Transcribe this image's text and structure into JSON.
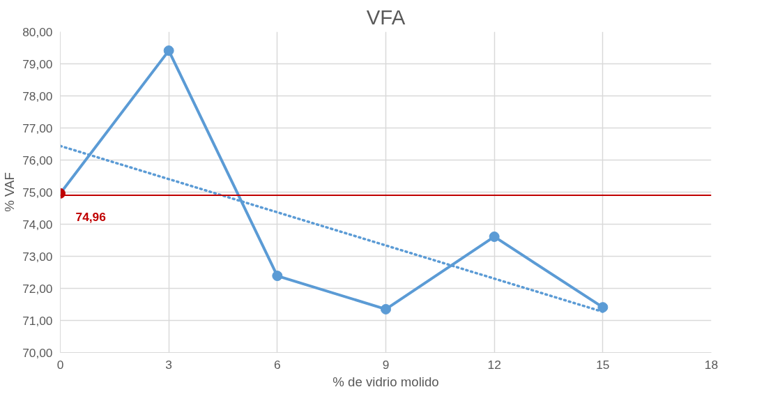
{
  "chart_data": {
    "type": "line",
    "title": "VFA",
    "xlabel": "% de vidrio molido",
    "ylabel": "% VAF",
    "xlim": [
      0,
      18
    ],
    "xticks": [
      0,
      3,
      6,
      9,
      12,
      15,
      18
    ],
    "ylim": [
      70,
      80
    ],
    "yticks": [
      {
        "value": 70,
        "label": "70,00"
      },
      {
        "value": 71,
        "label": "71,00"
      },
      {
        "value": 72,
        "label": "72,00"
      },
      {
        "value": 73,
        "label": "73,00"
      },
      {
        "value": 74,
        "label": "74,00"
      },
      {
        "value": 75,
        "label": "75,00"
      },
      {
        "value": 76,
        "label": "76,00"
      },
      {
        "value": 77,
        "label": "77,00"
      },
      {
        "value": 78,
        "label": "78,00"
      },
      {
        "value": 79,
        "label": "79,00"
      },
      {
        "value": 80,
        "label": "80,00"
      }
    ],
    "x": [
      0,
      3,
      6,
      9,
      12,
      15
    ],
    "series": [
      {
        "color": "#5b9bd5",
        "colors": [
          "#c00000",
          "#5b9bd5",
          "#5b9bd5",
          "#5b9bd5",
          "#5b9bd5",
          "#5b9bd5"
        ],
        "values": [
          74.96,
          79.41,
          72.39,
          71.35,
          73.61,
          71.41
        ],
        "value_labels": [
          "74,96",
          null,
          null,
          null,
          null,
          null
        ]
      },
      {
        "type": "line",
        "color": "#5b9bd5",
        "x": [
          0,
          15
        ],
        "values": [
          76.44,
          71.27
        ],
        "line_style": "dotted",
        "marker": "none"
      }
    ],
    "ref_lines": [
      {
        "axis": "y",
        "value": 74.9,
        "color": "#c00000"
      }
    ],
    "grid": true,
    "marker": "circle",
    "line_style": "solid"
  }
}
